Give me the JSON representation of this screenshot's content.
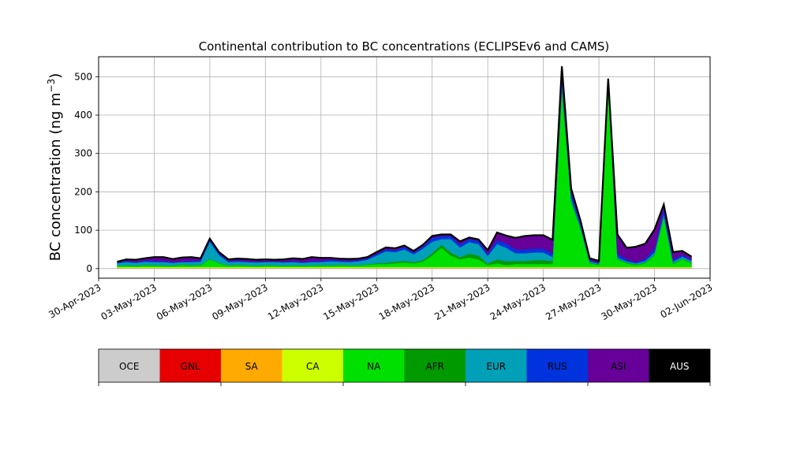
{
  "chart_data": {
    "type": "area",
    "title": "Continental contribution to BC concentrations (ECLIPSEv6 and CAMS)",
    "ylabel": "BC concentration (ng m",
    "ylabel_sup": "−3",
    "ylabel_close": ")",
    "xlim": [
      "2023-04-30",
      "2023-06-02"
    ],
    "ylim": [
      -25,
      552
    ],
    "grid": true,
    "x_ticks": [
      "2023-04-30",
      "2023-05-03",
      "2023-05-06",
      "2023-05-09",
      "2023-05-12",
      "2023-05-15",
      "2023-05-18",
      "2023-05-21",
      "2023-05-24",
      "2023-05-27",
      "2023-05-30",
      "2023-06-02"
    ],
    "x_tick_labels": [
      "30-Apr-2023",
      "03-May-2023",
      "06-May-2023",
      "09-May-2023",
      "12-May-2023",
      "15-May-2023",
      "18-May-2023",
      "21-May-2023",
      "24-May-2023",
      "27-May-2023",
      "30-May-2023",
      "02-Jun-2023"
    ],
    "y_ticks": [
      0,
      100,
      200,
      300,
      400,
      500
    ],
    "y_tick_labels": [
      "0",
      "100",
      "200",
      "300",
      "400",
      "500"
    ],
    "x": [
      "2023-05-01",
      "2023-05-01T12:00",
      "2023-05-02",
      "2023-05-02T12:00",
      "2023-05-03",
      "2023-05-03T12:00",
      "2023-05-04",
      "2023-05-04T12:00",
      "2023-05-05",
      "2023-05-05T12:00",
      "2023-05-06",
      "2023-05-06T12:00",
      "2023-05-07",
      "2023-05-07T12:00",
      "2023-05-08",
      "2023-05-08T12:00",
      "2023-05-09",
      "2023-05-09T12:00",
      "2023-05-10",
      "2023-05-10T12:00",
      "2023-05-11",
      "2023-05-11T12:00",
      "2023-05-12",
      "2023-05-12T12:00",
      "2023-05-13",
      "2023-05-13T12:00",
      "2023-05-14",
      "2023-05-14T12:00",
      "2023-05-15",
      "2023-05-15T12:00",
      "2023-05-16",
      "2023-05-16T12:00",
      "2023-05-17",
      "2023-05-17T12:00",
      "2023-05-18",
      "2023-05-18T12:00",
      "2023-05-19",
      "2023-05-19T12:00",
      "2023-05-20",
      "2023-05-20T12:00",
      "2023-05-21",
      "2023-05-21T12:00",
      "2023-05-22",
      "2023-05-22T12:00",
      "2023-05-23",
      "2023-05-23T12:00",
      "2023-05-24",
      "2023-05-24T12:00",
      "2023-05-25",
      "2023-05-25T12:00",
      "2023-05-26",
      "2023-05-26T12:00",
      "2023-05-27",
      "2023-05-27T12:00",
      "2023-05-28",
      "2023-05-28T12:00",
      "2023-05-29",
      "2023-05-29T12:00",
      "2023-05-30",
      "2023-05-30T12:00",
      "2023-05-31",
      "2023-05-31T12:00",
      "2023-06-01"
    ],
    "series": [
      {
        "name": "OCE",
        "color": "#cccccc",
        "values": [
          1,
          1,
          1,
          1,
          1,
          1,
          1,
          1,
          1,
          1,
          1,
          1,
          1,
          1,
          1,
          1,
          1,
          1,
          1,
          1,
          1,
          1,
          1,
          1,
          1,
          1,
          1,
          1,
          1,
          1,
          1,
          1,
          1,
          1,
          1,
          1,
          1,
          1,
          1,
          1,
          1,
          1,
          1,
          1,
          1,
          1,
          1,
          1,
          1,
          1,
          1,
          1,
          1,
          1,
          1,
          1,
          1,
          1,
          1,
          1,
          1,
          1,
          1
        ]
      },
      {
        "name": "GNL",
        "color": "#e60000",
        "values": [
          0.5,
          0.5,
          0.5,
          0.5,
          0.5,
          0.5,
          0.5,
          0.5,
          0.5,
          0.5,
          0.5,
          0.5,
          0.5,
          0.5,
          0.5,
          0.5,
          0.5,
          0.5,
          0.5,
          0.5,
          0.5,
          0.5,
          0.5,
          0.5,
          0.5,
          0.5,
          0.5,
          0.5,
          0.5,
          0.5,
          0.5,
          0.5,
          0.5,
          0.5,
          0.5,
          0.5,
          0.5,
          0.5,
          0.5,
          0.5,
          0.5,
          0.5,
          0.5,
          0.5,
          0.5,
          0.5,
          0.5,
          0.5,
          0.5,
          0.5,
          0.5,
          0.5,
          0.5,
          0.5,
          0.5,
          0.5,
          0.5,
          0.5,
          0.5,
          0.5,
          0.5,
          0.5,
          0.5
        ]
      },
      {
        "name": "SA",
        "color": "#ffaa00",
        "values": [
          0.5,
          0.5,
          0.5,
          0.5,
          0.5,
          0.5,
          0.5,
          0.5,
          0.5,
          0.5,
          0.5,
          0.5,
          0.5,
          0.5,
          0.5,
          0.5,
          0.5,
          0.5,
          0.5,
          0.5,
          0.5,
          0.5,
          0.5,
          0.5,
          0.5,
          0.5,
          0.5,
          0.5,
          0.5,
          0.5,
          0.5,
          0.5,
          0.5,
          0.5,
          0.5,
          0.5,
          0.5,
          0.5,
          0.5,
          0.5,
          0.5,
          0.5,
          0.5,
          0.5,
          0.5,
          0.5,
          0.5,
          0.5,
          0.5,
          0.5,
          0.5,
          0.5,
          0.5,
          0.5,
          0.5,
          0.5,
          0.5,
          0.5,
          0.5,
          0.5,
          0.5,
          0.5,
          0.5
        ]
      },
      {
        "name": "CA",
        "color": "#ccff00",
        "values": [
          2,
          2,
          2,
          2,
          2,
          2,
          2,
          2,
          2,
          2,
          2,
          2,
          2,
          2,
          2,
          2,
          2,
          2,
          2,
          2,
          2,
          2,
          2,
          2,
          2,
          2,
          2,
          2,
          2,
          2,
          2,
          2,
          2,
          2,
          2,
          2,
          2,
          2,
          2,
          2,
          2,
          2,
          2,
          2,
          2,
          2,
          2,
          2,
          2,
          2,
          2,
          2,
          2,
          2,
          2,
          2,
          2,
          2,
          2,
          2,
          2,
          2,
          2
        ]
      },
      {
        "name": "NA",
        "color": "#00e000",
        "values": [
          3,
          4,
          3,
          5,
          4,
          4,
          3,
          6,
          4,
          5,
          20,
          10,
          4,
          5,
          4,
          3,
          4,
          4,
          3,
          4,
          3,
          4,
          4,
          4,
          5,
          4,
          4,
          6,
          8,
          8,
          10,
          12,
          10,
          14,
          30,
          50,
          30,
          20,
          25,
          20,
          5,
          10,
          5,
          8,
          8,
          8,
          8,
          8,
          460,
          170,
          100,
          10,
          5,
          470,
          20,
          10,
          5,
          10,
          30,
          130,
          8,
          20,
          10
        ]
      },
      {
        "name": "AFR",
        "color": "#009900",
        "values": [
          1,
          1,
          1,
          1,
          1,
          1,
          1,
          1,
          1,
          1,
          1,
          1,
          1,
          1,
          1,
          1,
          1,
          1,
          1,
          1,
          1,
          1,
          1,
          1,
          1,
          1,
          1,
          1,
          2,
          3,
          4,
          4,
          3,
          4,
          6,
          8,
          8,
          6,
          10,
          10,
          4,
          10,
          10,
          8,
          8,
          10,
          10,
          8,
          10,
          5,
          3,
          2,
          2,
          3,
          2,
          2,
          2,
          2,
          3,
          3,
          2,
          2,
          2
        ]
      },
      {
        "name": "EUR",
        "color": "#00a0b8",
        "values": [
          6,
          8,
          7,
          8,
          8,
          8,
          7,
          6,
          8,
          8,
          45,
          20,
          8,
          8,
          8,
          8,
          8,
          8,
          8,
          8,
          7,
          8,
          8,
          10,
          8,
          8,
          10,
          12,
          20,
          30,
          25,
          30,
          20,
          30,
          30,
          15,
          35,
          25,
          30,
          30,
          20,
          40,
          35,
          20,
          20,
          20,
          20,
          10,
          8,
          5,
          4,
          3,
          2,
          3,
          3,
          3,
          3,
          4,
          5,
          5,
          4,
          5,
          4
        ]
      },
      {
        "name": "RUS",
        "color": "#0033dd",
        "values": [
          2,
          3,
          2,
          3,
          3,
          3,
          2,
          2,
          3,
          3,
          6,
          4,
          2,
          3,
          2,
          2,
          2,
          2,
          2,
          3,
          2,
          3,
          3,
          4,
          3,
          3,
          3,
          3,
          4,
          5,
          5,
          6,
          5,
          5,
          10,
          8,
          8,
          8,
          8,
          8,
          5,
          10,
          12,
          10,
          10,
          10,
          10,
          10,
          25,
          15,
          10,
          3,
          2,
          10,
          10,
          5,
          3,
          5,
          10,
          15,
          5,
          5,
          3
        ]
      },
      {
        "name": "ASI",
        "color": "#660099",
        "values": [
          2,
          4,
          6,
          6,
          10,
          10,
          8,
          10,
          10,
          6,
          2,
          4,
          5,
          5,
          6,
          5,
          5,
          4,
          6,
          7,
          8,
          10,
          8,
          5,
          5,
          5,
          4,
          4,
          5,
          5,
          5,
          4,
          4,
          5,
          5,
          4,
          4,
          8,
          4,
          4,
          10,
          20,
          20,
          30,
          35,
          35,
          35,
          35,
          20,
          10,
          5,
          5,
          5,
          5,
          50,
          30,
          40,
          40,
          50,
          10,
          20,
          10,
          8
        ]
      },
      {
        "name": "AUS",
        "color": "#000000",
        "values": [
          0,
          0,
          0,
          0,
          0,
          0,
          0,
          0,
          0,
          0,
          0,
          0,
          0,
          0,
          0,
          0,
          0,
          0,
          0,
          0,
          0,
          0,
          0,
          0,
          0,
          0,
          0,
          0,
          0,
          0,
          0,
          0,
          0,
          0,
          0,
          0,
          0,
          0,
          0,
          0,
          0,
          0,
          0,
          0,
          0,
          0,
          0,
          0,
          0,
          0,
          0,
          0,
          0,
          0,
          0,
          0,
          0,
          0,
          0,
          0,
          0,
          0,
          0
        ]
      }
    ]
  }
}
